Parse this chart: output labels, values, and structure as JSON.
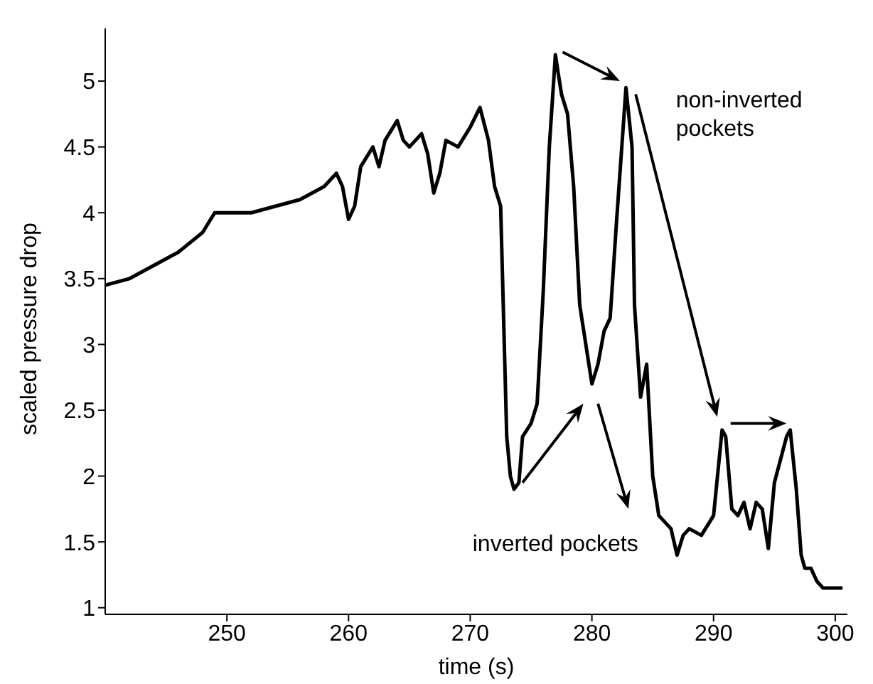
{
  "chart_data": {
    "type": "line",
    "xlabel": "time (s)",
    "ylabel": "scaled pressure drop",
    "xlim": [
      240,
      301
    ],
    "ylim": [
      0.95,
      5.4
    ],
    "xticks": [
      250,
      260,
      270,
      280,
      290,
      300
    ],
    "yticks": [
      1,
      1.5,
      2,
      2.5,
      3,
      3.5,
      4,
      4.5,
      5
    ],
    "grid": false,
    "legend": false,
    "marker": "none",
    "line_style": "solid",
    "annotations": [
      "inverted pockets",
      "non-inverted pockets"
    ],
    "series": [
      {
        "color": "#000000",
        "x": [
          240,
          242,
          244,
          246,
          248,
          249,
          250,
          252,
          254,
          256,
          258,
          259,
          259.5,
          260,
          260.5,
          261,
          262,
          262.5,
          263,
          264,
          264.5,
          265,
          266,
          266.5,
          267,
          267.5,
          268,
          269,
          270,
          270.8,
          271.5,
          272,
          272.5,
          273,
          273.3,
          273.6,
          274,
          274.3,
          275,
          275.5,
          276,
          276.5,
          277,
          277.5,
          278,
          278.5,
          279,
          279.5,
          280,
          280.5,
          281,
          281.5,
          282,
          282.8,
          283.3,
          283.5,
          284,
          284.5,
          285,
          285.5,
          286,
          286.5,
          287,
          287.5,
          288,
          289,
          290,
          290.7,
          291,
          291.5,
          292,
          292.5,
          293,
          293.5,
          294,
          294.5,
          295,
          296,
          296.3,
          296.8,
          297.2,
          297.5,
          298,
          298.5,
          299,
          300,
          300.6
        ],
        "values": [
          3.45,
          3.5,
          3.6,
          3.7,
          3.85,
          4.0,
          4.0,
          4.0,
          4.05,
          4.1,
          4.2,
          4.3,
          4.2,
          3.95,
          4.05,
          4.35,
          4.5,
          4.35,
          4.55,
          4.7,
          4.55,
          4.5,
          4.6,
          4.45,
          4.15,
          4.3,
          4.55,
          4.5,
          4.65,
          4.8,
          4.55,
          4.2,
          4.05,
          2.3,
          2.0,
          1.9,
          1.95,
          2.3,
          2.4,
          2.55,
          3.4,
          4.5,
          5.2,
          4.9,
          4.75,
          4.2,
          3.3,
          3.0,
          2.7,
          2.85,
          3.1,
          3.2,
          3.9,
          4.95,
          4.5,
          3.3,
          2.6,
          2.85,
          2.0,
          1.7,
          1.65,
          1.6,
          1.4,
          1.55,
          1.6,
          1.55,
          1.7,
          2.35,
          2.3,
          1.75,
          1.7,
          1.8,
          1.6,
          1.8,
          1.75,
          1.45,
          1.95,
          2.3,
          2.35,
          1.9,
          1.4,
          1.3,
          1.3,
          1.2,
          1.15,
          1.15,
          1.15
        ]
      }
    ]
  }
}
